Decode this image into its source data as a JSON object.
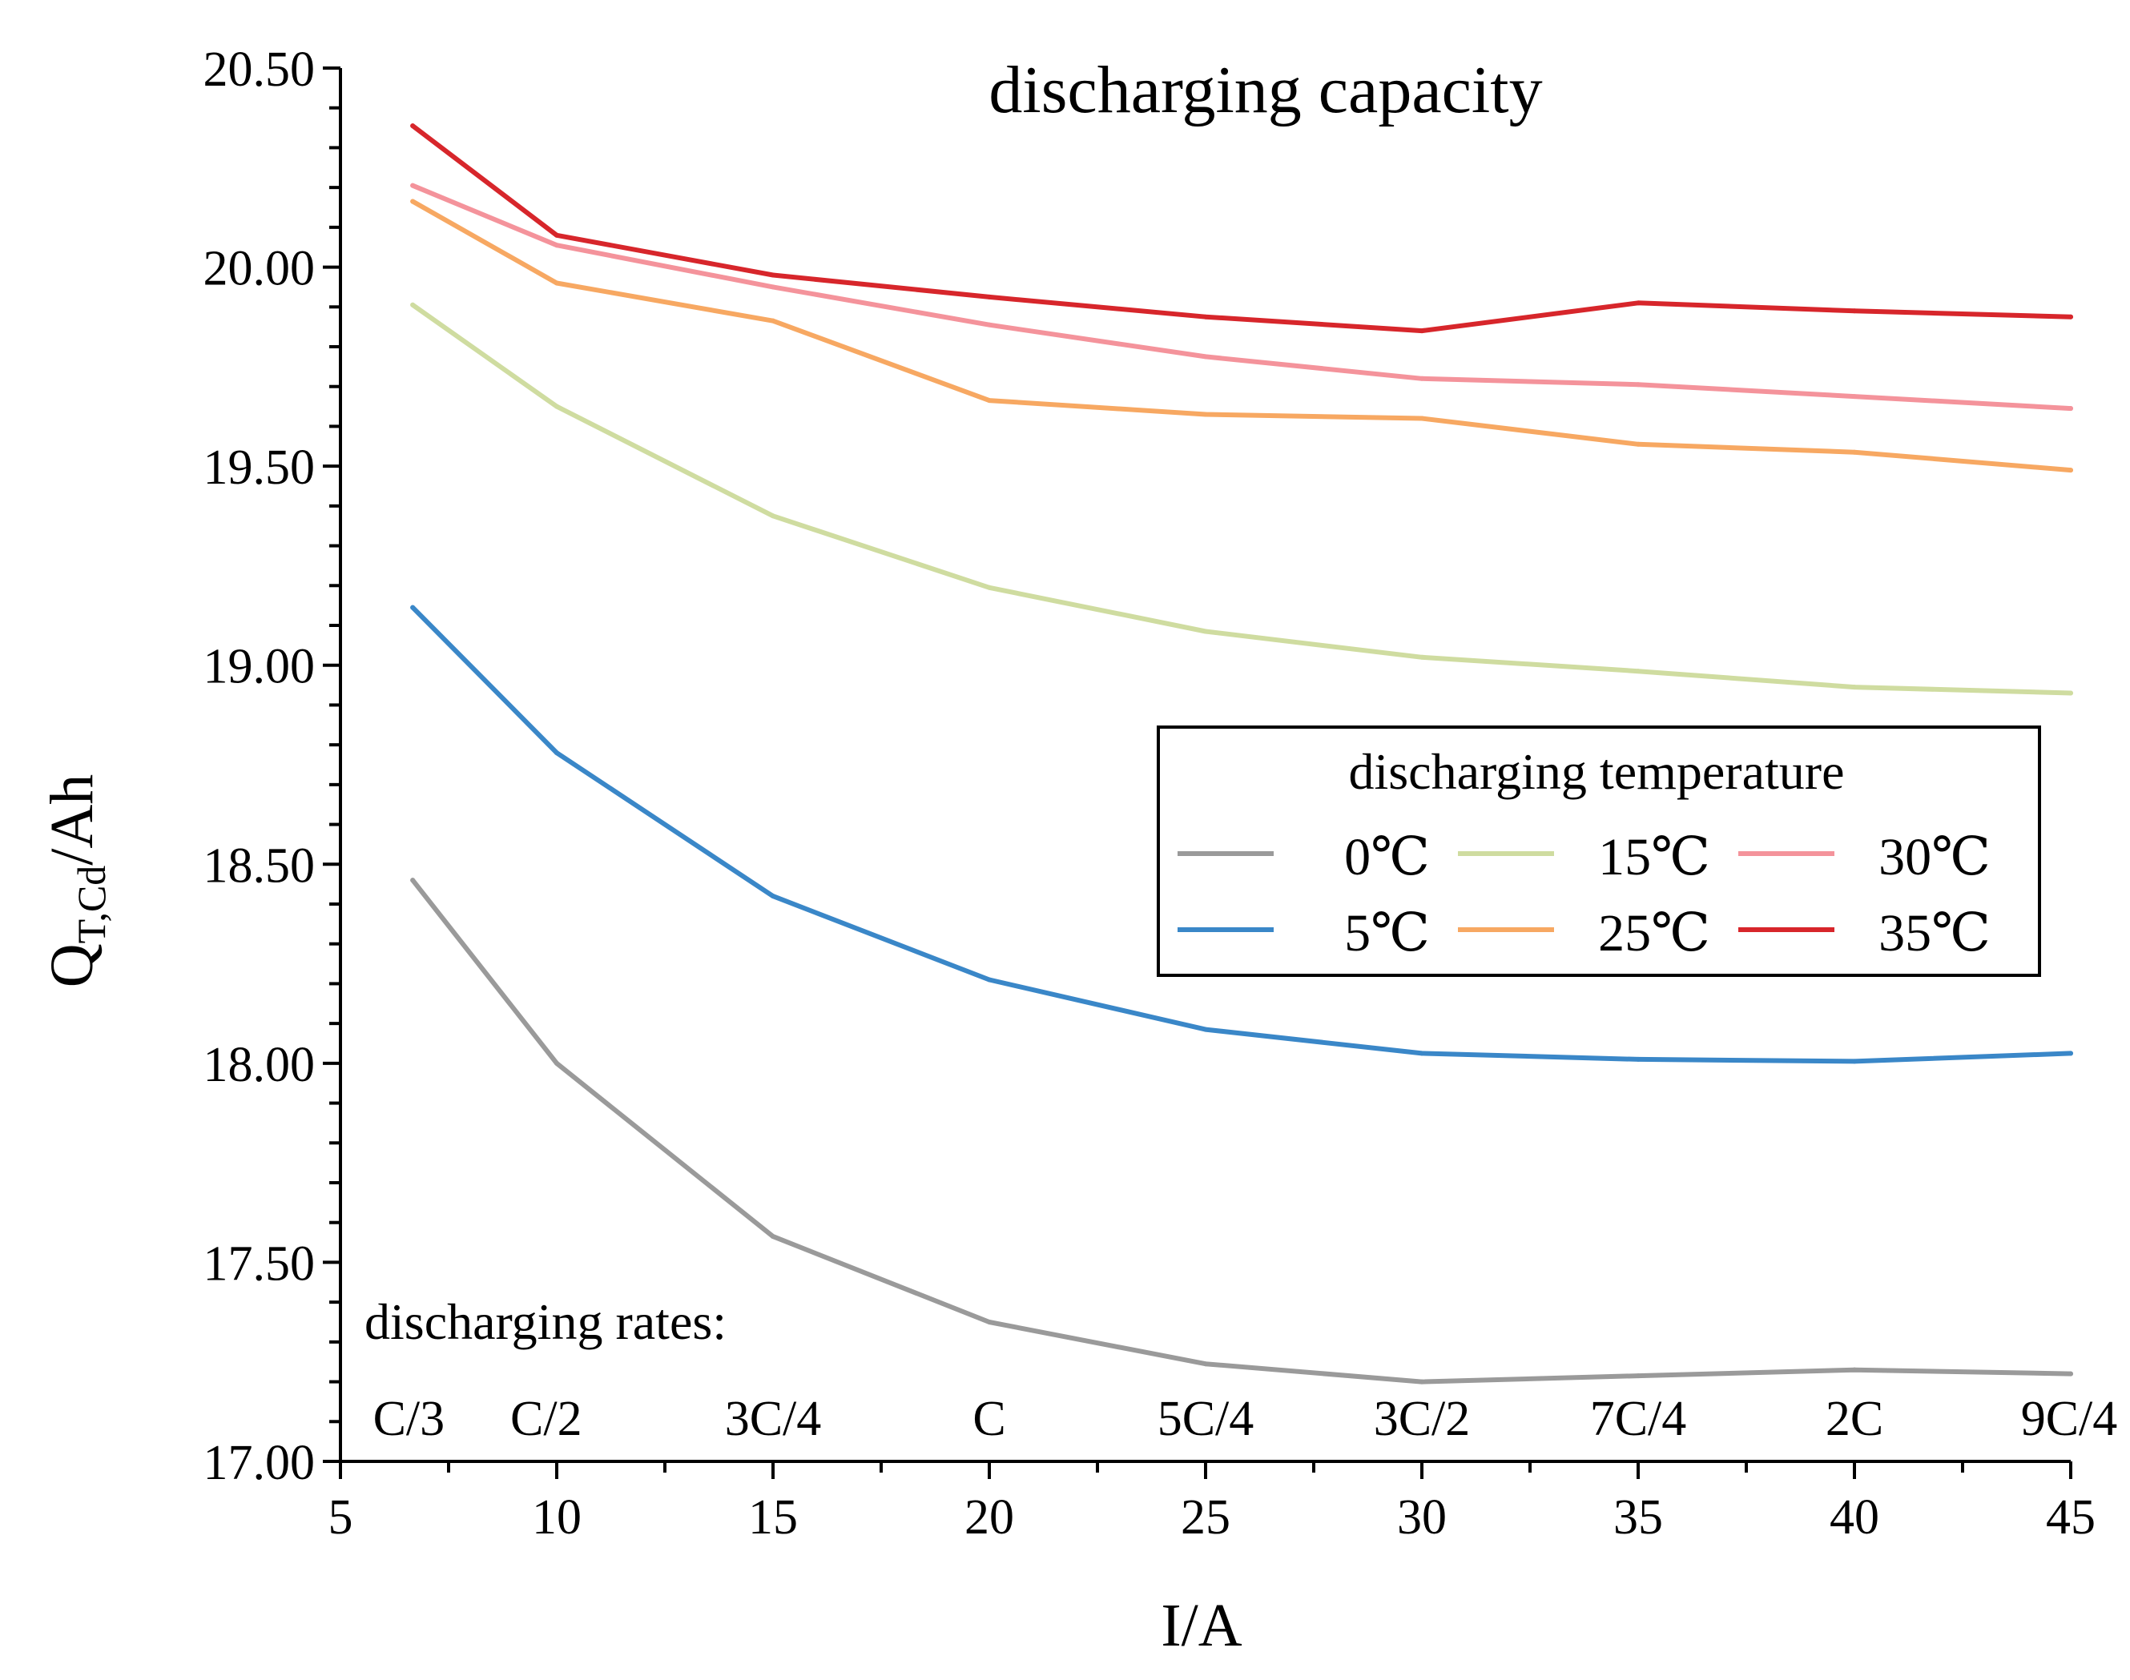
{
  "chart_data": {
    "type": "line",
    "title": "discharging capacity",
    "xlabel": "I/A",
    "ylabel": {
      "main": "Q",
      "sub": "T,Cd",
      "unit": "/Ah"
    },
    "xlim": [
      5,
      45
    ],
    "ylim": [
      17.0,
      20.5
    ],
    "x_ticks": [
      5,
      10,
      15,
      20,
      25,
      30,
      35,
      40,
      45
    ],
    "y_ticks": [
      "17.00",
      "17.50",
      "18.00",
      "18.50",
      "19.00",
      "19.50",
      "20.00",
      "20.50"
    ],
    "x": [
      6.67,
      10,
      15,
      20,
      25,
      30,
      35,
      40,
      45
    ],
    "rate_labels_title": "discharging rates:",
    "rate_labels": [
      "C/3",
      "C/2",
      "3C/4",
      "C",
      "5C/4",
      "3C/2",
      "7C/4",
      "2C",
      "9C/4"
    ],
    "legend_title": "discharging temperature",
    "legend_position": "right-middle",
    "grid": false,
    "series": [
      {
        "name": "0℃",
        "color": "#9a9a9a",
        "values": [
          18.46,
          18.0,
          17.565,
          17.35,
          17.245,
          17.2,
          17.215,
          17.23,
          17.22
        ]
      },
      {
        "name": "5℃",
        "color": "#3a87c8",
        "values": [
          19.145,
          18.78,
          18.42,
          18.21,
          18.085,
          18.025,
          18.01,
          18.005,
          18.025
        ]
      },
      {
        "name": "15℃",
        "color": "#cfdca0",
        "values": [
          19.905,
          19.65,
          19.375,
          19.195,
          19.085,
          19.02,
          18.985,
          18.945,
          18.93
        ]
      },
      {
        "name": "25℃",
        "color": "#f7a862",
        "values": [
          20.165,
          19.96,
          19.865,
          19.665,
          19.63,
          19.62,
          19.555,
          19.535,
          19.49
        ]
      },
      {
        "name": "30℃",
        "color": "#f4939b",
        "values": [
          20.205,
          20.055,
          19.95,
          19.855,
          19.775,
          19.72,
          19.705,
          19.675,
          19.645
        ]
      },
      {
        "name": "35℃",
        "color": "#d7262b",
        "values": [
          20.355,
          20.08,
          19.98,
          19.925,
          19.875,
          19.84,
          19.91,
          19.89,
          19.875
        ]
      }
    ]
  }
}
